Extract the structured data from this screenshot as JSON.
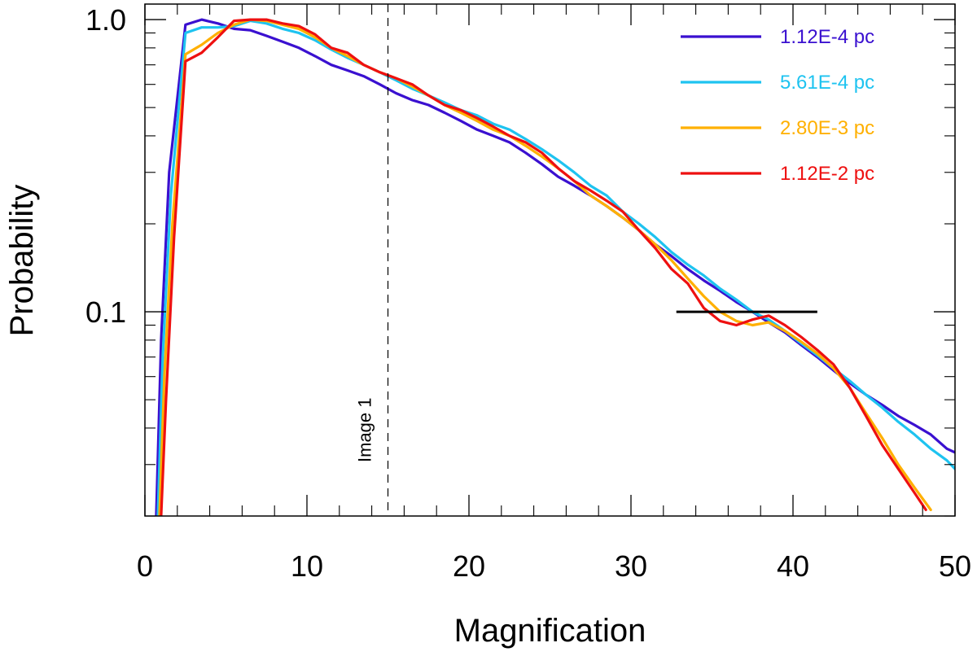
{
  "chart_data": {
    "type": "line",
    "title": "",
    "xlabel": "Magnification",
    "ylabel": "Probability",
    "xlim": [
      0,
      50
    ],
    "ylim": [
      0.02,
      1.13
    ],
    "yscale": "log",
    "x_ticks": [
      0,
      10,
      20,
      30,
      40,
      50
    ],
    "x_tick_labels": [
      "0",
      "10",
      "20",
      "30",
      "40",
      "50"
    ],
    "y_ticks": [
      0.1,
      1.0
    ],
    "y_tick_labels": [
      "0.1",
      "1.0"
    ],
    "grid": false,
    "legend_position": "top-right",
    "annotations": [
      {
        "type": "vline",
        "x": 15,
        "label": "Image 1",
        "style": "dashed"
      },
      {
        "type": "hline",
        "x_start": 32.8,
        "x_end": 41.5,
        "y": 0.1
      }
    ],
    "series": [
      {
        "name": "1.12E-4 pc",
        "color": "#3a10d0",
        "x": [
          0.7,
          1.0,
          1.5,
          2.5,
          3.5,
          4.5,
          5.5,
          6.5,
          7.5,
          8.5,
          9.5,
          10.5,
          11.5,
          12.5,
          13.5,
          14.5,
          15.5,
          16.5,
          17.5,
          18.5,
          19.5,
          20.5,
          21.5,
          22.5,
          23.5,
          24.5,
          25.5,
          26.5,
          27.5,
          28.5,
          29.5,
          30.5,
          31.5,
          32.5,
          33.5,
          34.5,
          35.5,
          36.5,
          37.5,
          38.5,
          39.5,
          40.5,
          41.5,
          42.5,
          43.5,
          44.5,
          45.5,
          46.5,
          47.5,
          48.5,
          49.5,
          50
        ],
        "y": [
          0.02,
          0.08,
          0.3,
          0.96,
          1.0,
          0.97,
          0.93,
          0.92,
          0.88,
          0.84,
          0.8,
          0.75,
          0.7,
          0.67,
          0.64,
          0.6,
          0.56,
          0.53,
          0.51,
          0.48,
          0.45,
          0.42,
          0.4,
          0.38,
          0.35,
          0.32,
          0.29,
          0.27,
          0.25,
          0.23,
          0.21,
          0.19,
          0.17,
          0.155,
          0.14,
          0.128,
          0.118,
          0.108,
          0.1,
          0.092,
          0.085,
          0.077,
          0.07,
          0.063,
          0.057,
          0.052,
          0.048,
          0.044,
          0.041,
          0.038,
          0.034,
          0.033
        ]
      },
      {
        "name": "5.61E-4 pc",
        "color": "#1ec3f0",
        "x": [
          0.8,
          1.1,
          1.6,
          2.5,
          3.5,
          4.5,
          5.5,
          6.5,
          7.5,
          8.5,
          9.5,
          10.5,
          11.5,
          12.5,
          13.5,
          14.5,
          15.5,
          16.5,
          17.5,
          18.5,
          19.5,
          20.5,
          21.5,
          22.5,
          23.5,
          24.5,
          25.5,
          26.5,
          27.5,
          28.5,
          29.5,
          30.5,
          31.5,
          32.5,
          33.5,
          34.5,
          35.5,
          36.5,
          37.5,
          38.5,
          39.5,
          40.5,
          41.5,
          42.5,
          43.5,
          44.5,
          45.5,
          46.5,
          47.5,
          48.5,
          49.5,
          50
        ],
        "y": [
          0.02,
          0.07,
          0.25,
          0.9,
          0.94,
          0.94,
          0.95,
          0.99,
          0.97,
          0.93,
          0.9,
          0.85,
          0.79,
          0.74,
          0.7,
          0.66,
          0.62,
          0.58,
          0.55,
          0.52,
          0.49,
          0.47,
          0.44,
          0.42,
          0.39,
          0.36,
          0.33,
          0.3,
          0.27,
          0.25,
          0.22,
          0.2,
          0.18,
          0.16,
          0.145,
          0.133,
          0.12,
          0.11,
          0.1,
          0.094,
          0.086,
          0.078,
          0.071,
          0.064,
          0.058,
          0.052,
          0.047,
          0.042,
          0.038,
          0.034,
          0.031,
          0.029
        ]
      },
      {
        "name": "2.80E-3 pc",
        "color": "#ffb000",
        "x": [
          0.9,
          1.2,
          1.7,
          2.5,
          3.5,
          4.5,
          5.5,
          6.5,
          7.5,
          8.5,
          9.5,
          10.5,
          11.5,
          12.5,
          13.5,
          14.5,
          15.5,
          16.5,
          17.5,
          18.5,
          19.5,
          20.5,
          21.5,
          22.5,
          23.5,
          24.5,
          25.5,
          26.5,
          27.5,
          28.5,
          29.5,
          30.5,
          31.5,
          32.5,
          33.5,
          34.5,
          35.5,
          36.5,
          37.5,
          38.5,
          39.5,
          40.5,
          41.5,
          42.5,
          43.5,
          44.5,
          45.5,
          46.5,
          47.5,
          48.5
        ],
        "y": [
          0.02,
          0.06,
          0.2,
          0.76,
          0.82,
          0.9,
          0.96,
          1.0,
          0.99,
          0.96,
          0.93,
          0.87,
          0.8,
          0.75,
          0.7,
          0.66,
          0.63,
          0.59,
          0.55,
          0.51,
          0.48,
          0.45,
          0.42,
          0.4,
          0.37,
          0.34,
          0.31,
          0.28,
          0.25,
          0.23,
          0.21,
          0.19,
          0.17,
          0.15,
          0.13,
          0.113,
          0.1,
          0.093,
          0.09,
          0.092,
          0.086,
          0.079,
          0.072,
          0.064,
          0.055,
          0.045,
          0.037,
          0.03,
          0.025,
          0.021
        ]
      },
      {
        "name": "1.12E-2 pc",
        "color": "#ee1010",
        "x": [
          1.0,
          1.3,
          1.8,
          2.5,
          3.5,
          4.5,
          5.5,
          6.5,
          7.5,
          8.5,
          9.5,
          10.5,
          11.5,
          12.5,
          13.5,
          14.5,
          15.5,
          16.5,
          17.5,
          18.5,
          19.5,
          20.5,
          21.5,
          22.5,
          23.5,
          24.5,
          25.5,
          26.5,
          27.5,
          28.5,
          29.5,
          30.5,
          31.5,
          32.5,
          33.5,
          34.5,
          35.5,
          36.5,
          37.5,
          38.5,
          39.5,
          40.5,
          41.5,
          42.5,
          43.5,
          44.5,
          45.5,
          46.5,
          47.5,
          48.2
        ],
        "y": [
          0.02,
          0.05,
          0.18,
          0.72,
          0.77,
          0.87,
          0.99,
          1.0,
          1.0,
          0.97,
          0.95,
          0.89,
          0.8,
          0.77,
          0.7,
          0.66,
          0.63,
          0.6,
          0.55,
          0.51,
          0.49,
          0.46,
          0.43,
          0.4,
          0.38,
          0.35,
          0.31,
          0.28,
          0.26,
          0.24,
          0.22,
          0.19,
          0.165,
          0.14,
          0.125,
          0.103,
          0.093,
          0.09,
          0.094,
          0.097,
          0.09,
          0.082,
          0.074,
          0.066,
          0.055,
          0.044,
          0.035,
          0.029,
          0.024,
          0.021
        ]
      }
    ]
  }
}
